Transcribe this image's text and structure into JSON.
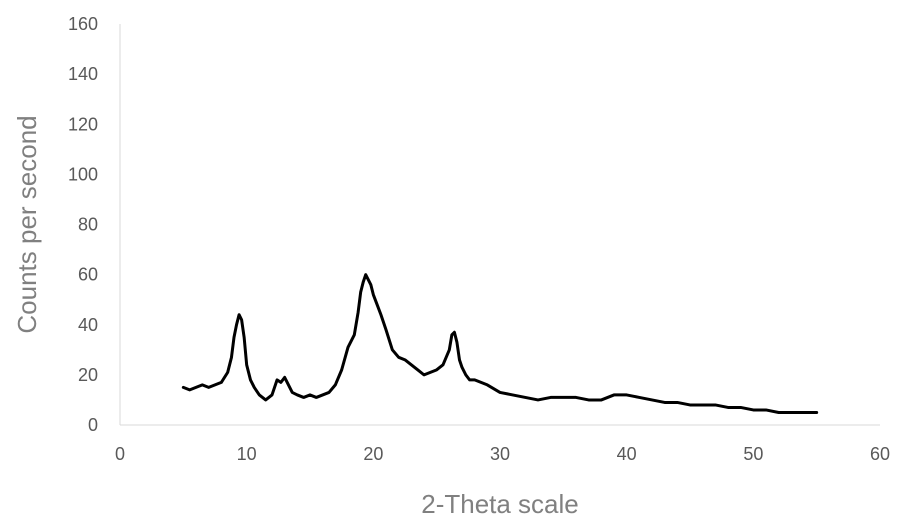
{
  "chart_data": {
    "type": "line",
    "title": "",
    "xlabel": "2-Theta scale",
    "ylabel": "Counts per second",
    "xlim": [
      0,
      60
    ],
    "ylim": [
      0,
      160
    ],
    "xticks": [
      0,
      10,
      20,
      30,
      40,
      50,
      60
    ],
    "yticks": [
      0,
      20,
      40,
      60,
      80,
      100,
      120,
      140,
      160
    ],
    "xtick_labels": [
      "0",
      "10",
      "20",
      "30",
      "40",
      "50",
      "60"
    ],
    "ytick_labels": [
      "0",
      "20",
      "40",
      "60",
      "80",
      "100",
      "120",
      "140",
      "160"
    ],
    "grid": false,
    "legend": "none",
    "colors": {
      "line": "#000000",
      "axis": "#d9d9d9"
    },
    "series": [
      {
        "x": [
          5,
          5.5,
          6,
          6.5,
          7,
          7.5,
          8,
          8.5,
          8.8,
          9,
          9.2,
          9.4,
          9.6,
          9.8,
          10,
          10.3,
          10.6,
          11,
          11.5,
          12,
          12.4,
          12.7,
          13,
          13.3,
          13.6,
          14,
          14.5,
          15,
          15.5,
          16,
          16.5,
          17,
          17.5,
          18,
          18.5,
          18.8,
          19,
          19.2,
          19.4,
          19.6,
          19.8,
          20,
          20.3,
          20.6,
          21,
          21.5,
          22,
          22.5,
          23,
          23.5,
          24,
          24.5,
          25,
          25.5,
          26,
          26.2,
          26.4,
          26.6,
          26.8,
          27,
          27.3,
          27.6,
          28,
          28.5,
          29,
          30,
          31,
          32,
          33,
          34,
          35,
          36,
          37,
          38,
          39,
          40,
          41,
          42,
          43,
          44,
          45,
          46,
          47,
          48,
          49,
          50,
          51,
          52,
          53,
          54,
          55
        ],
        "y": [
          15,
          14,
          15,
          16,
          15,
          16,
          17,
          21,
          27,
          35,
          40,
          44,
          42,
          35,
          24,
          18,
          15,
          12,
          10,
          12,
          18,
          17,
          19,
          16,
          13,
          12,
          11,
          12,
          11,
          12,
          13,
          16,
          22,
          31,
          36,
          45,
          53,
          57,
          60,
          58,
          56,
          52,
          48,
          44,
          38,
          30,
          27,
          26,
          24,
          22,
          20,
          21,
          22,
          24,
          30,
          36,
          37,
          33,
          26,
          23,
          20,
          18,
          18,
          17,
          16,
          13,
          12,
          11,
          10,
          11,
          11,
          11,
          10,
          10,
          12,
          12,
          11,
          10,
          9,
          9,
          8,
          8,
          8,
          7,
          7,
          6,
          6,
          5,
          5,
          5,
          5
        ]
      }
    ]
  }
}
